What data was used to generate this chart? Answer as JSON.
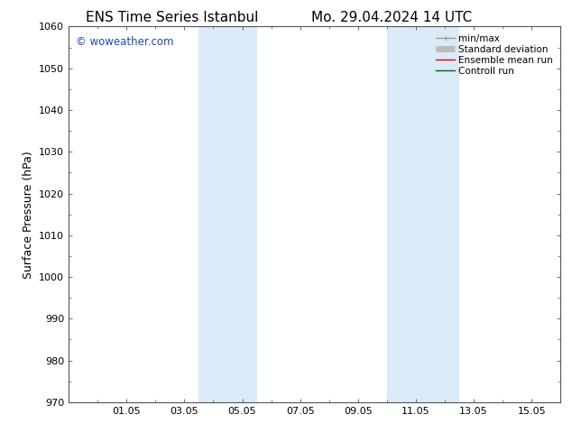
{
  "title_left": "ENS Time Series Istanbul",
  "title_right": "Mo. 29.04.2024 14 UTC",
  "ylabel": "Surface Pressure (hPa)",
  "ylim": [
    970,
    1060
  ],
  "yticks": [
    970,
    980,
    990,
    1000,
    1010,
    1020,
    1030,
    1040,
    1050,
    1060
  ],
  "xlim": [
    0,
    17
  ],
  "xtick_labels": [
    "01.05",
    "03.05",
    "05.05",
    "07.05",
    "09.05",
    "11.05",
    "13.05",
    "15.05"
  ],
  "xtick_positions": [
    2,
    4,
    6,
    8,
    10,
    12,
    14,
    16
  ],
  "shaded_bands": [
    {
      "x_start": 4.5,
      "x_end": 5.5,
      "color": "#daeaf7"
    },
    {
      "x_start": 5.5,
      "x_end": 6.5,
      "color": "#daeaf7"
    },
    {
      "x_start": 11.0,
      "x_end": 12.0,
      "color": "#daeaf7"
    },
    {
      "x_start": 12.0,
      "x_end": 13.5,
      "color": "#daeaf7"
    }
  ],
  "watermark": "© woweather.com",
  "watermark_color": "#2244bb",
  "legend_entries": [
    {
      "label": "min/max",
      "color": "#999999",
      "lw": 1.0
    },
    {
      "label": "Standard deviation",
      "color": "#bbbbbb",
      "lw": 5
    },
    {
      "label": "Ensemble mean run",
      "color": "#dd0000",
      "lw": 1.0
    },
    {
      "label": "Controll run",
      "color": "#006600",
      "lw": 1.0
    }
  ],
  "bg_color": "#ffffff",
  "plot_bg_color": "#ffffff",
  "title_fontsize": 11,
  "tick_fontsize": 8,
  "label_fontsize": 9,
  "legend_fontsize": 7.5
}
